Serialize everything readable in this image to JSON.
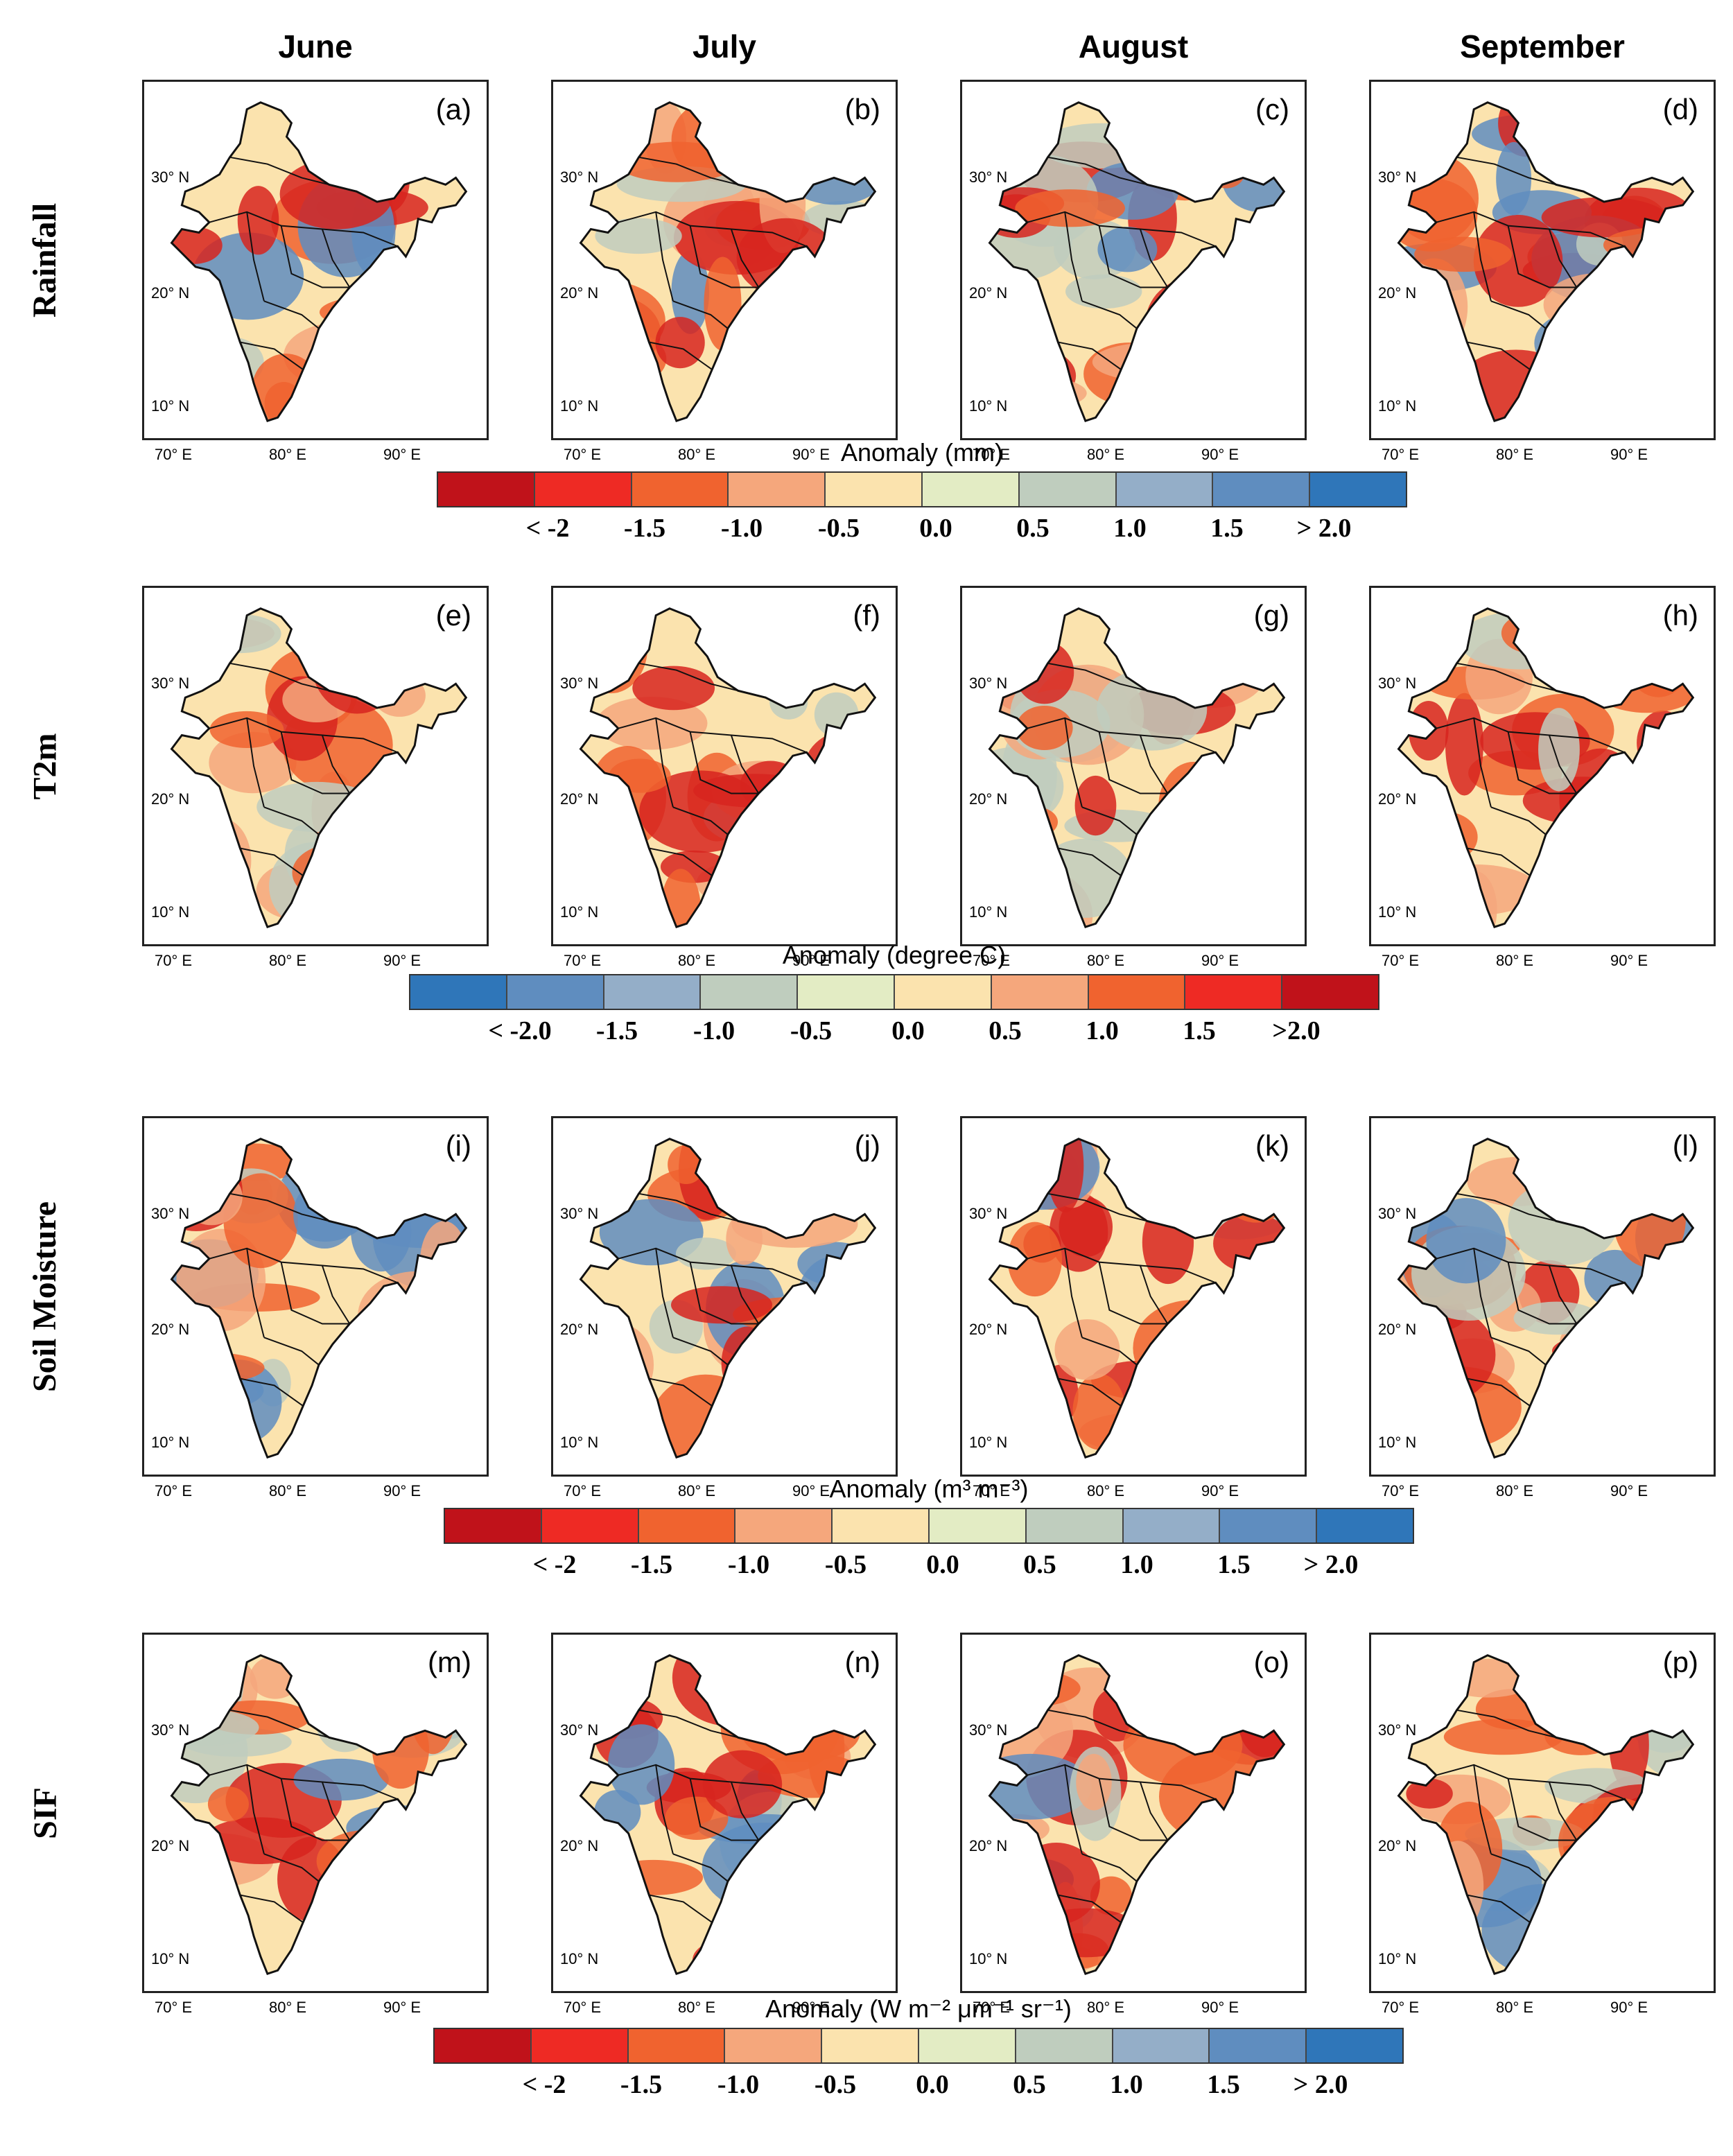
{
  "columns": [
    "June",
    "July",
    "August",
    "September"
  ],
  "rows": [
    {
      "label": "Rainfall",
      "panels": [
        "(a)",
        "(b)",
        "(c)",
        "(d)"
      ],
      "palette": "dry",
      "colorbar": {
        "title": "Anomaly (mm)",
        "colors": [
          "#c0121a",
          "#ee2a24",
          "#f0632f",
          "#f5a77c",
          "#fbe3ae",
          "#e3ecc4",
          "#bfcdbe",
          "#94aec8",
          "#5f8dbf",
          "#2f76b9"
        ],
        "labels": [
          "< -2",
          "-1.5",
          "-1.0",
          "-0.5",
          "0.0",
          "0.5",
          "1.0",
          "1.5",
          "> 2.0"
        ]
      }
    },
    {
      "label": "T2m",
      "panels": [
        "(e)",
        "(f)",
        "(g)",
        "(h)"
      ],
      "palette": "hot",
      "colorbar": {
        "title": "Anomaly (degree C)",
        "colors": [
          "#2f76b9",
          "#5f8dbf",
          "#94aec8",
          "#bfcdbe",
          "#e3ecc4",
          "#fbe3ae",
          "#f5a77c",
          "#f0632f",
          "#ee2a24",
          "#c0121a"
        ],
        "labels": [
          "< -2.0",
          "-1.5",
          "-1.0",
          "-0.5",
          "0.0",
          "0.5",
          "1.0",
          "1.5",
          ">2.0"
        ]
      }
    },
    {
      "label": "Soil Moisture",
      "panels": [
        "(i)",
        "(j)",
        "(k)",
        "(l)"
      ],
      "palette": "dry",
      "colorbar": {
        "title": "Anomaly (m³ m⁻³)",
        "colors": [
          "#c0121a",
          "#ee2a24",
          "#f0632f",
          "#f5a77c",
          "#fbe3ae",
          "#e3ecc4",
          "#bfcdbe",
          "#94aec8",
          "#5f8dbf",
          "#2f76b9"
        ],
        "labels": [
          "< -2",
          "-1.5",
          "-1.0",
          "-0.5",
          "0.0",
          "0.5",
          "1.0",
          "1.5",
          "> 2.0"
        ]
      }
    },
    {
      "label": "SIF",
      "panels": [
        "(m)",
        "(n)",
        "(o)",
        "(p)"
      ],
      "palette": "dry",
      "colorbar": {
        "title": "Anomaly (W m⁻² μm⁻¹ sr⁻¹)",
        "colors": [
          "#c0121a",
          "#ee2a24",
          "#f0632f",
          "#f5a77c",
          "#fbe3ae",
          "#e3ecc4",
          "#bfcdbe",
          "#94aec8",
          "#5f8dbf",
          "#2f76b9"
        ],
        "labels": [
          "< -2",
          "-1.5",
          "-1.0",
          "-0.5",
          "0.0",
          "0.5",
          "1.0",
          "1.5",
          "> 2.0"
        ]
      }
    }
  ],
  "y_ticks": [
    "30° N",
    "20° N",
    "10° N"
  ],
  "x_ticks": [
    "70° E",
    "80° E",
    "90° E"
  ],
  "map_colors": {
    "land_base": "#fbe3ae",
    "outline": "#111111",
    "dry_patch": "#f0632f",
    "dry_strong": "#d7251f",
    "wet_patch": "#5f8dbf",
    "mild_patch": "#f5a77c",
    "cool_patch": "#bfcdbe"
  }
}
